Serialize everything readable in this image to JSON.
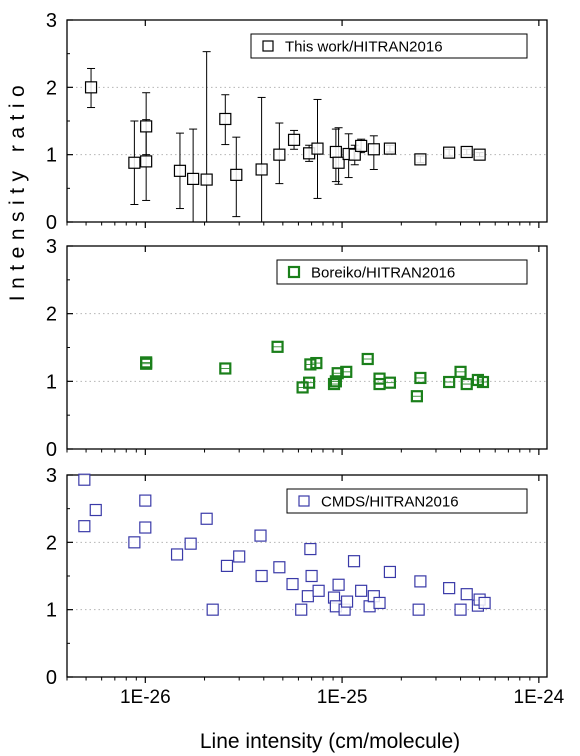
{
  "figure": {
    "xlabel": "Line intensity (cm/molecule)",
    "ylabel": "Intensity ratio"
  },
  "chart_data": [
    {
      "type": "scatter",
      "title": "",
      "xlabel": "Line intensity (cm/molecule)",
      "ylabel": "Intensity ratio",
      "x_scale": "log",
      "xlim": [
        4e-27,
        1.1e-24
      ],
      "ylim": [
        0,
        3
      ],
      "yticks": [
        "0",
        "1",
        "2",
        "3"
      ],
      "xticks": [
        "1E-26",
        "1E-25",
        "1E-24"
      ],
      "grid": "dotted horizontal at y = 1, 2",
      "legend_position": "top-right",
      "series": [
        {
          "name": "This work/HITRAN2016",
          "color": "#000000",
          "marker": "open-square",
          "error_bars": true,
          "points": [
            {
              "x": 5.3e-27,
              "y": 2.0,
              "err_low": 0.3,
              "err_high": 0.28
            },
            {
              "x": 8.8e-27,
              "y": 0.88,
              "err_low": 0.62,
              "err_high": 0.62
            },
            {
              "x": 1.01e-26,
              "y": 1.42,
              "err_low": 0.42,
              "err_high": 0.5
            },
            {
              "x": 1.01e-26,
              "y": 0.9,
              "err_low": 0.58,
              "err_high": 0.62
            },
            {
              "x": 1.5e-26,
              "y": 0.76,
              "err_low": 0.56,
              "err_high": 0.56
            },
            {
              "x": 1.75e-26,
              "y": 0.64,
              "err_low": 0.64,
              "err_high": 0.74
            },
            {
              "x": 2.05e-26,
              "y": 0.63,
              "err_low": 0.63,
              "err_high": 1.9
            },
            {
              "x": 2.55e-26,
              "y": 1.53,
              "err_low": 0.38,
              "err_high": 0.36
            },
            {
              "x": 2.9e-26,
              "y": 0.7,
              "err_low": 0.62,
              "err_high": 0.56
            },
            {
              "x": 3.9e-26,
              "y": 0.78,
              "err_low": 0.78,
              "err_high": 1.07
            },
            {
              "x": 4.8e-26,
              "y": 1.0,
              "err_low": 0.43,
              "err_high": 0.47
            },
            {
              "x": 5.7e-26,
              "y": 1.22,
              "err_low": 0.14,
              "err_high": 0.14
            },
            {
              "x": 6.8e-26,
              "y": 1.02,
              "err_low": 0.12,
              "err_high": 0.12
            },
            {
              "x": 7.5e-26,
              "y": 1.09,
              "err_low": 0.74,
              "err_high": 0.73
            },
            {
              "x": 9.3e-26,
              "y": 1.04,
              "err_low": 0.44,
              "err_high": 0.34
            },
            {
              "x": 9.6e-26,
              "y": 0.88,
              "err_low": 0.32,
              "err_high": 0.52
            },
            {
              "x": 1.08e-25,
              "y": 1.01,
              "err_low": 0.35,
              "err_high": 0.3
            },
            {
              "x": 1.16e-25,
              "y": 1.0,
              "err_low": 0.15,
              "err_high": 0.14
            },
            {
              "x": 1.25e-25,
              "y": 1.13,
              "err_low": 0.1,
              "err_high": 0.1
            },
            {
              "x": 1.45e-25,
              "y": 1.08,
              "err_low": 0.3,
              "err_high": 0.2
            },
            {
              "x": 1.75e-25,
              "y": 1.09,
              "err_low": 0.05,
              "err_high": 0.05
            },
            {
              "x": 2.5e-25,
              "y": 0.93,
              "err_low": 0.05,
              "err_high": 0.05
            },
            {
              "x": 3.5e-25,
              "y": 1.03,
              "err_low": 0.05,
              "err_high": 0.05
            },
            {
              "x": 4.3e-25,
              "y": 1.04,
              "err_low": 0.04,
              "err_high": 0.04
            },
            {
              "x": 5e-25,
              "y": 1.0,
              "err_low": 0.03,
              "err_high": 0.03
            }
          ]
        },
        {
          "name": "Boreiko/HITRAN2016",
          "color": "#1a7f1a",
          "marker": "open-square-bold",
          "error_bars": false,
          "points": [
            {
              "x": 1.01e-26,
              "y": 1.28
            },
            {
              "x": 1.01e-26,
              "y": 1.26
            },
            {
              "x": 2.55e-26,
              "y": 1.19
            },
            {
              "x": 4.7e-26,
              "y": 1.51
            },
            {
              "x": 6.3e-26,
              "y": 0.91
            },
            {
              "x": 6.8e-26,
              "y": 0.98
            },
            {
              "x": 6.9e-26,
              "y": 1.25
            },
            {
              "x": 7.4e-26,
              "y": 1.27
            },
            {
              "x": 9.1e-26,
              "y": 0.96
            },
            {
              "x": 9.3e-26,
              "y": 1.0
            },
            {
              "x": 9.5e-26,
              "y": 1.12
            },
            {
              "x": 1.05e-25,
              "y": 1.14
            },
            {
              "x": 1.35e-25,
              "y": 1.33
            },
            {
              "x": 1.55e-25,
              "y": 0.96
            },
            {
              "x": 1.55e-25,
              "y": 1.04
            },
            {
              "x": 1.75e-25,
              "y": 0.98
            },
            {
              "x": 2.4e-25,
              "y": 0.78
            },
            {
              "x": 2.5e-25,
              "y": 1.05
            },
            {
              "x": 3.5e-25,
              "y": 0.99
            },
            {
              "x": 4e-25,
              "y": 1.14
            },
            {
              "x": 4.3e-25,
              "y": 0.96
            },
            {
              "x": 4.9e-25,
              "y": 1.02
            },
            {
              "x": 5.2e-25,
              "y": 0.99
            }
          ]
        },
        {
          "name": "CMDS/HITRAN2016",
          "color": "#3a3aa8",
          "marker": "open-square",
          "error_bars": false,
          "points": [
            {
              "x": 4.9e-27,
              "y": 2.93
            },
            {
              "x": 4.9e-27,
              "y": 2.24
            },
            {
              "x": 5.6e-27,
              "y": 2.48
            },
            {
              "x": 8.8e-27,
              "y": 2.0
            },
            {
              "x": 1e-26,
              "y": 2.62
            },
            {
              "x": 1e-26,
              "y": 2.22
            },
            {
              "x": 1.45e-26,
              "y": 1.82
            },
            {
              "x": 1.7e-26,
              "y": 1.98
            },
            {
              "x": 2.05e-26,
              "y": 2.35
            },
            {
              "x": 2.2e-26,
              "y": 1.0
            },
            {
              "x": 2.6e-26,
              "y": 1.65
            },
            {
              "x": 3e-26,
              "y": 1.79
            },
            {
              "x": 3.85e-26,
              "y": 2.1
            },
            {
              "x": 3.9e-26,
              "y": 1.5
            },
            {
              "x": 4.8e-26,
              "y": 1.63
            },
            {
              "x": 5.6e-26,
              "y": 1.38
            },
            {
              "x": 6.2e-26,
              "y": 1.0
            },
            {
              "x": 6.7e-26,
              "y": 1.2
            },
            {
              "x": 6.9e-26,
              "y": 1.9
            },
            {
              "x": 7e-26,
              "y": 1.5
            },
            {
              "x": 7.6e-26,
              "y": 1.28
            },
            {
              "x": 9.1e-26,
              "y": 1.18
            },
            {
              "x": 9.3e-26,
              "y": 1.05
            },
            {
              "x": 9.6e-26,
              "y": 1.37
            },
            {
              "x": 1.03e-25,
              "y": 1.0
            },
            {
              "x": 1.06e-25,
              "y": 1.12
            },
            {
              "x": 1.15e-25,
              "y": 1.72
            },
            {
              "x": 1.25e-25,
              "y": 1.28
            },
            {
              "x": 1.38e-25,
              "y": 1.05
            },
            {
              "x": 1.45e-25,
              "y": 1.2
            },
            {
              "x": 1.55e-25,
              "y": 1.1
            },
            {
              "x": 1.75e-25,
              "y": 1.56
            },
            {
              "x": 2.45e-25,
              "y": 1.0
            },
            {
              "x": 2.5e-25,
              "y": 1.42
            },
            {
              "x": 3.5e-25,
              "y": 1.32
            },
            {
              "x": 4e-25,
              "y": 1.0
            },
            {
              "x": 4.3e-25,
              "y": 1.23
            },
            {
              "x": 4.9e-25,
              "y": 1.06
            },
            {
              "x": 5e-25,
              "y": 1.15
            },
            {
              "x": 5.3e-25,
              "y": 1.1
            }
          ]
        }
      ]
    }
  ]
}
